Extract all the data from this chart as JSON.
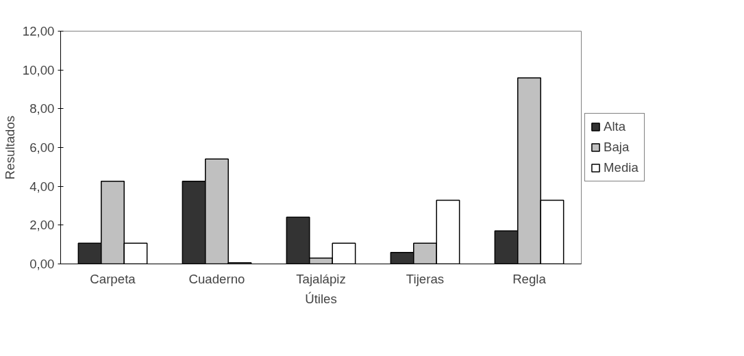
{
  "chart_data": {
    "type": "bar",
    "xlabel": "Útiles",
    "ylabel": "Resultados",
    "categories": [
      "Carpeta",
      "Cuaderno",
      "Tajalápiz",
      "Tijeras",
      "Regla"
    ],
    "series": [
      {
        "name": "Alta",
        "color": "#333333",
        "values": [
          1.07,
          4.26,
          2.41,
          0.59,
          1.7
        ]
      },
      {
        "name": "Baja",
        "color": "#c0c0c0",
        "values": [
          4.26,
          5.41,
          0.3,
          1.07,
          9.59
        ]
      },
      {
        "name": "Media",
        "color": "#ffffff",
        "values": [
          1.07,
          0.06,
          1.07,
          3.28,
          3.28
        ]
      }
    ],
    "ylim": [
      0,
      12
    ],
    "yticks": [
      {
        "value": 0,
        "label": "0,00"
      },
      {
        "value": 2,
        "label": "2,00"
      },
      {
        "value": 4,
        "label": "4,00"
      },
      {
        "value": 6,
        "label": "6,00"
      },
      {
        "value": 8,
        "label": "8,00"
      },
      {
        "value": 10,
        "label": "10,00"
      },
      {
        "value": 12,
        "label": "12,00"
      }
    ],
    "grid": false,
    "legend": "right"
  }
}
